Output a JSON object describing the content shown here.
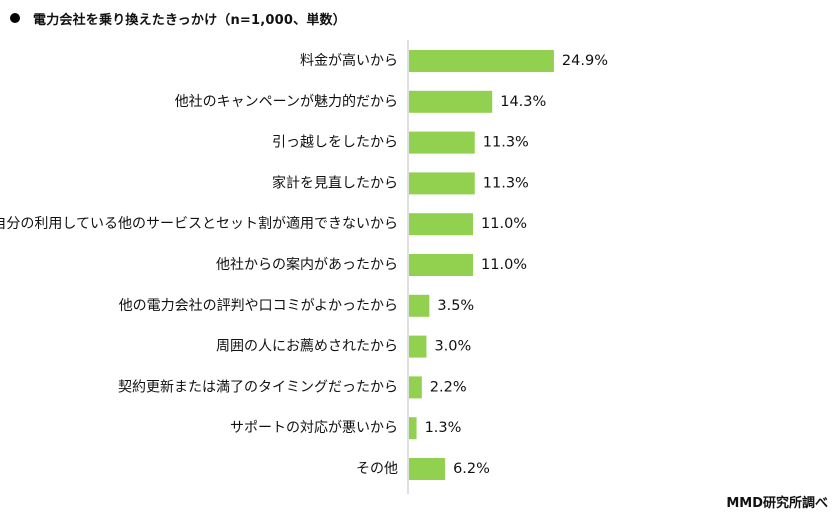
{
  "bullet_icon": "filled-circle-icon",
  "chart_data": {
    "type": "bar",
    "orientation": "horizontal",
    "title": "電力会社を乗り換えたきっかけ（n=1,000、単数）",
    "categories": [
      "料金が高いから",
      "他社のキャンペーンが魅力的だから",
      "引っ越しをしたから",
      "家計を見直したから",
      "自分の利用している他のサービスとセット割が適用できないから",
      "他社からの案内があったから",
      "他の電力会社の評判や口コミがよかったから",
      "周囲の人にお薦めされたから",
      "契約更新または満了のタイミングだったから",
      "サポートの対応が悪いから",
      "その他"
    ],
    "values": [
      24.9,
      14.3,
      11.3,
      11.3,
      11.0,
      11.0,
      3.5,
      3.0,
      2.2,
      1.3,
      6.2
    ],
    "value_labels": [
      "24.9%",
      "14.3%",
      "11.3%",
      "11.3%",
      "11.0%",
      "11.0%",
      "3.5%",
      "3.0%",
      "2.2%",
      "1.3%",
      "6.2%"
    ],
    "unit": "%",
    "bar_color": "#92d050",
    "axis_color": "#bfbfbf",
    "grid": false,
    "legend": false
  },
  "source": "MMD研究所調べ"
}
